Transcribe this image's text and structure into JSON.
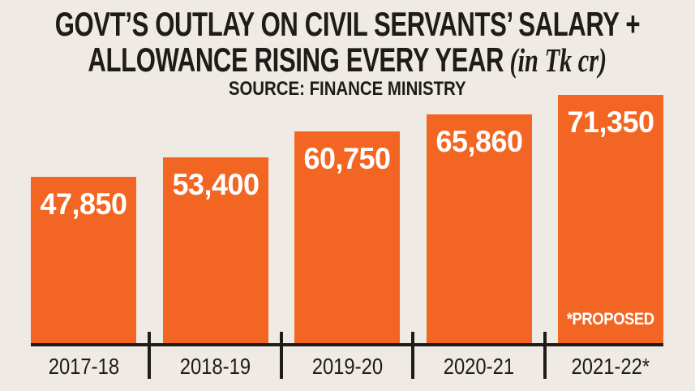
{
  "title": {
    "line1": "GOVT’S OUTLAY ON CIVIL SERVANTS’ SALARY +",
    "line2": "ALLOWANCE RISING EVERY YEAR",
    "unit": "(in Tk cr)",
    "source": "SOURCE: FINANCE MINISTRY"
  },
  "chart_data": {
    "type": "bar",
    "title": "GOVT’S OUTLAY ON CIVIL SERVANTS’ SALARY + ALLOWANCE RISING EVERY YEAR",
    "unit_label": "(in Tk cr)",
    "source": "SOURCE: FINANCE MINISTRY",
    "categories": [
      "2017-18",
      "2018-19",
      "2019-20",
      "2020-21",
      "2021-22*"
    ],
    "values": [
      47850,
      53400,
      60750,
      65860,
      71350
    ],
    "value_labels": [
      "47,850",
      "53,400",
      "60,750",
      "65,860",
      "71,350"
    ],
    "annotation": "*PROPOSED",
    "annotation_on_category": "2021-22*",
    "ylim": [
      0,
      71350
    ],
    "grid": false,
    "legend": "none",
    "bar_color": "#F26522",
    "value_label_color": "#FFFFFF"
  },
  "colors": {
    "background": "#EFEAE4",
    "bar": "#F26522",
    "text": "#1E1B18",
    "axis": "#1E1B18",
    "value_text": "#FFFFFF"
  }
}
